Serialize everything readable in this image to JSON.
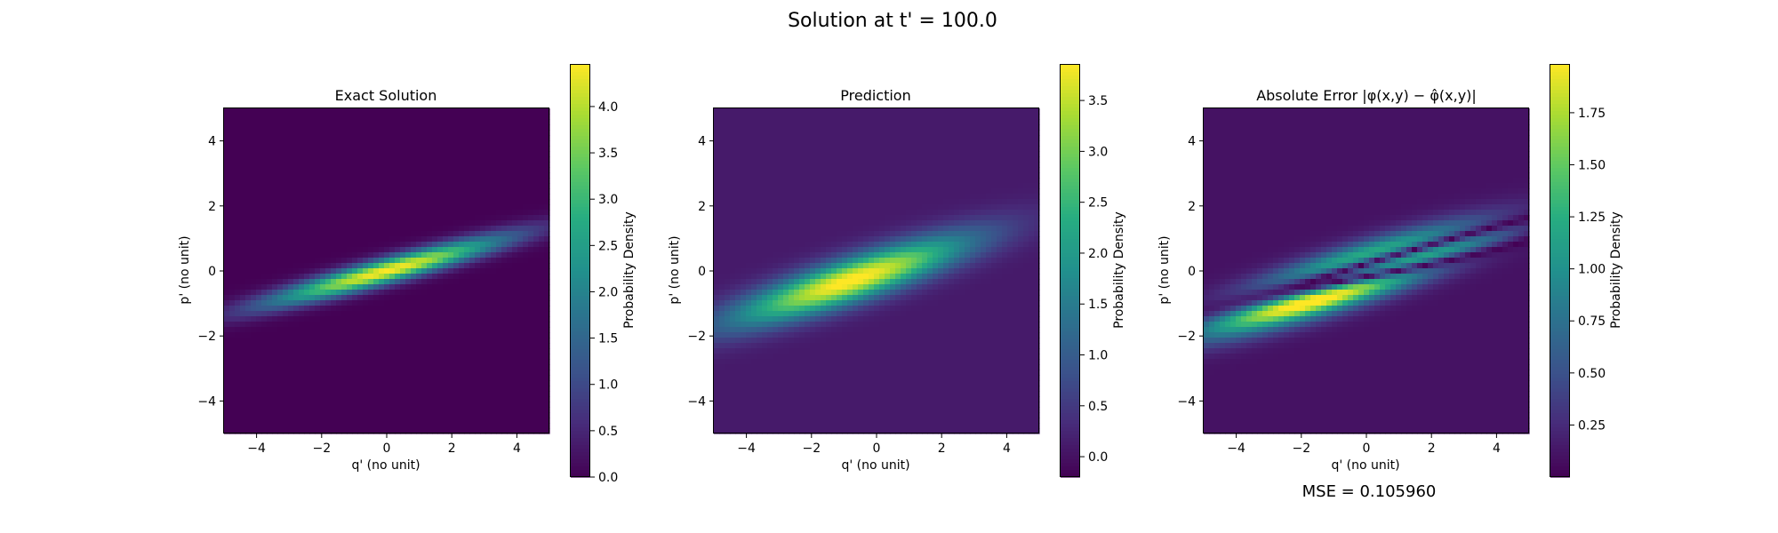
{
  "figure": {
    "suptitle": "Solution at t' = 100.0",
    "mse_label": "MSE = 0.105960"
  },
  "chart_data": [
    {
      "type": "heatmap",
      "title": "Exact Solution",
      "xlabel": "q' (no unit)",
      "ylabel": "p' (no unit)",
      "xlim": [
        -5,
        5
      ],
      "ylim": [
        -5,
        5
      ],
      "xticks": [
        -4,
        -2,
        0,
        2,
        4
      ],
      "yticks": [
        -4,
        -2,
        0,
        2,
        4
      ],
      "xtick_labels": [
        "−4",
        "−2",
        "0",
        "2",
        "4"
      ],
      "ytick_labels": [
        "−4",
        "−2",
        "0",
        "2",
        "4"
      ],
      "colormap": "viridis",
      "colorbar": {
        "label": "Probability Density",
        "range": [
          0.0,
          4.45
        ],
        "ticks": [
          0.0,
          0.5,
          1.0,
          1.5,
          2.0,
          2.5,
          3.0,
          3.5,
          4.0
        ],
        "tick_labels": [
          "0.0",
          "0.5",
          "1.0",
          "1.5",
          "2.0",
          "2.5",
          "3.0",
          "3.5",
          "4.0"
        ]
      },
      "field": {
        "kind": "rotated-gaussian",
        "peak": 4.45,
        "center": [
          0.0,
          0.0
        ],
        "slope": 0.27,
        "sigma_along": 2.6,
        "sigma_perp": 0.26,
        "background": 0.0
      }
    },
    {
      "type": "heatmap",
      "title": "Prediction",
      "xlabel": "q' (no unit)",
      "ylabel": "p' (no unit)",
      "xlim": [
        -5,
        5
      ],
      "ylim": [
        -5,
        5
      ],
      "xticks": [
        -4,
        -2,
        0,
        2,
        4
      ],
      "yticks": [
        -4,
        -2,
        0,
        2,
        4
      ],
      "xtick_labels": [
        "−4",
        "−2",
        "0",
        "2",
        "4"
      ],
      "ytick_labels": [
        "−4",
        "−2",
        "0",
        "2",
        "4"
      ],
      "colormap": "viridis",
      "colorbar": {
        "label": "Probability Density",
        "range": [
          -0.2,
          3.85
        ],
        "ticks": [
          0.0,
          0.5,
          1.0,
          1.5,
          2.0,
          2.5,
          3.0,
          3.5
        ],
        "tick_labels": [
          "0.0",
          "0.5",
          "1.0",
          "1.5",
          "2.0",
          "2.5",
          "3.0",
          "3.5"
        ]
      },
      "field": {
        "kind": "rotated-gaussian",
        "peak": 3.85,
        "center": [
          -0.8,
          -0.3
        ],
        "slope": 0.33,
        "sigma_along": 2.6,
        "sigma_perp": 0.45,
        "background": 0.1
      }
    },
    {
      "type": "heatmap",
      "title": "Absolute Error |φ(x,y) − φ̂(x,y)|",
      "xlabel": "q' (no unit)",
      "ylabel": "p' (no unit)",
      "xlim": [
        -5,
        5
      ],
      "ylim": [
        -5,
        5
      ],
      "xticks": [
        -4,
        -2,
        0,
        2,
        4
      ],
      "yticks": [
        -4,
        -2,
        0,
        2,
        4
      ],
      "xtick_labels": [
        "−4",
        "−2",
        "0",
        "2",
        "4"
      ],
      "ytick_labels": [
        "−4",
        "−2",
        "0",
        "2",
        "4"
      ],
      "colormap": "viridis",
      "colorbar": {
        "label": "Probability Density",
        "range": [
          0.0,
          1.98
        ],
        "ticks": [
          0.25,
          0.5,
          0.75,
          1.0,
          1.25,
          1.5,
          1.75
        ],
        "tick_labels": [
          "0.25",
          "0.50",
          "0.75",
          "1.00",
          "1.25",
          "1.50",
          "1.75"
        ]
      },
      "field": {
        "kind": "absolute-difference",
        "of": [
          1,
          0
        ]
      }
    }
  ]
}
